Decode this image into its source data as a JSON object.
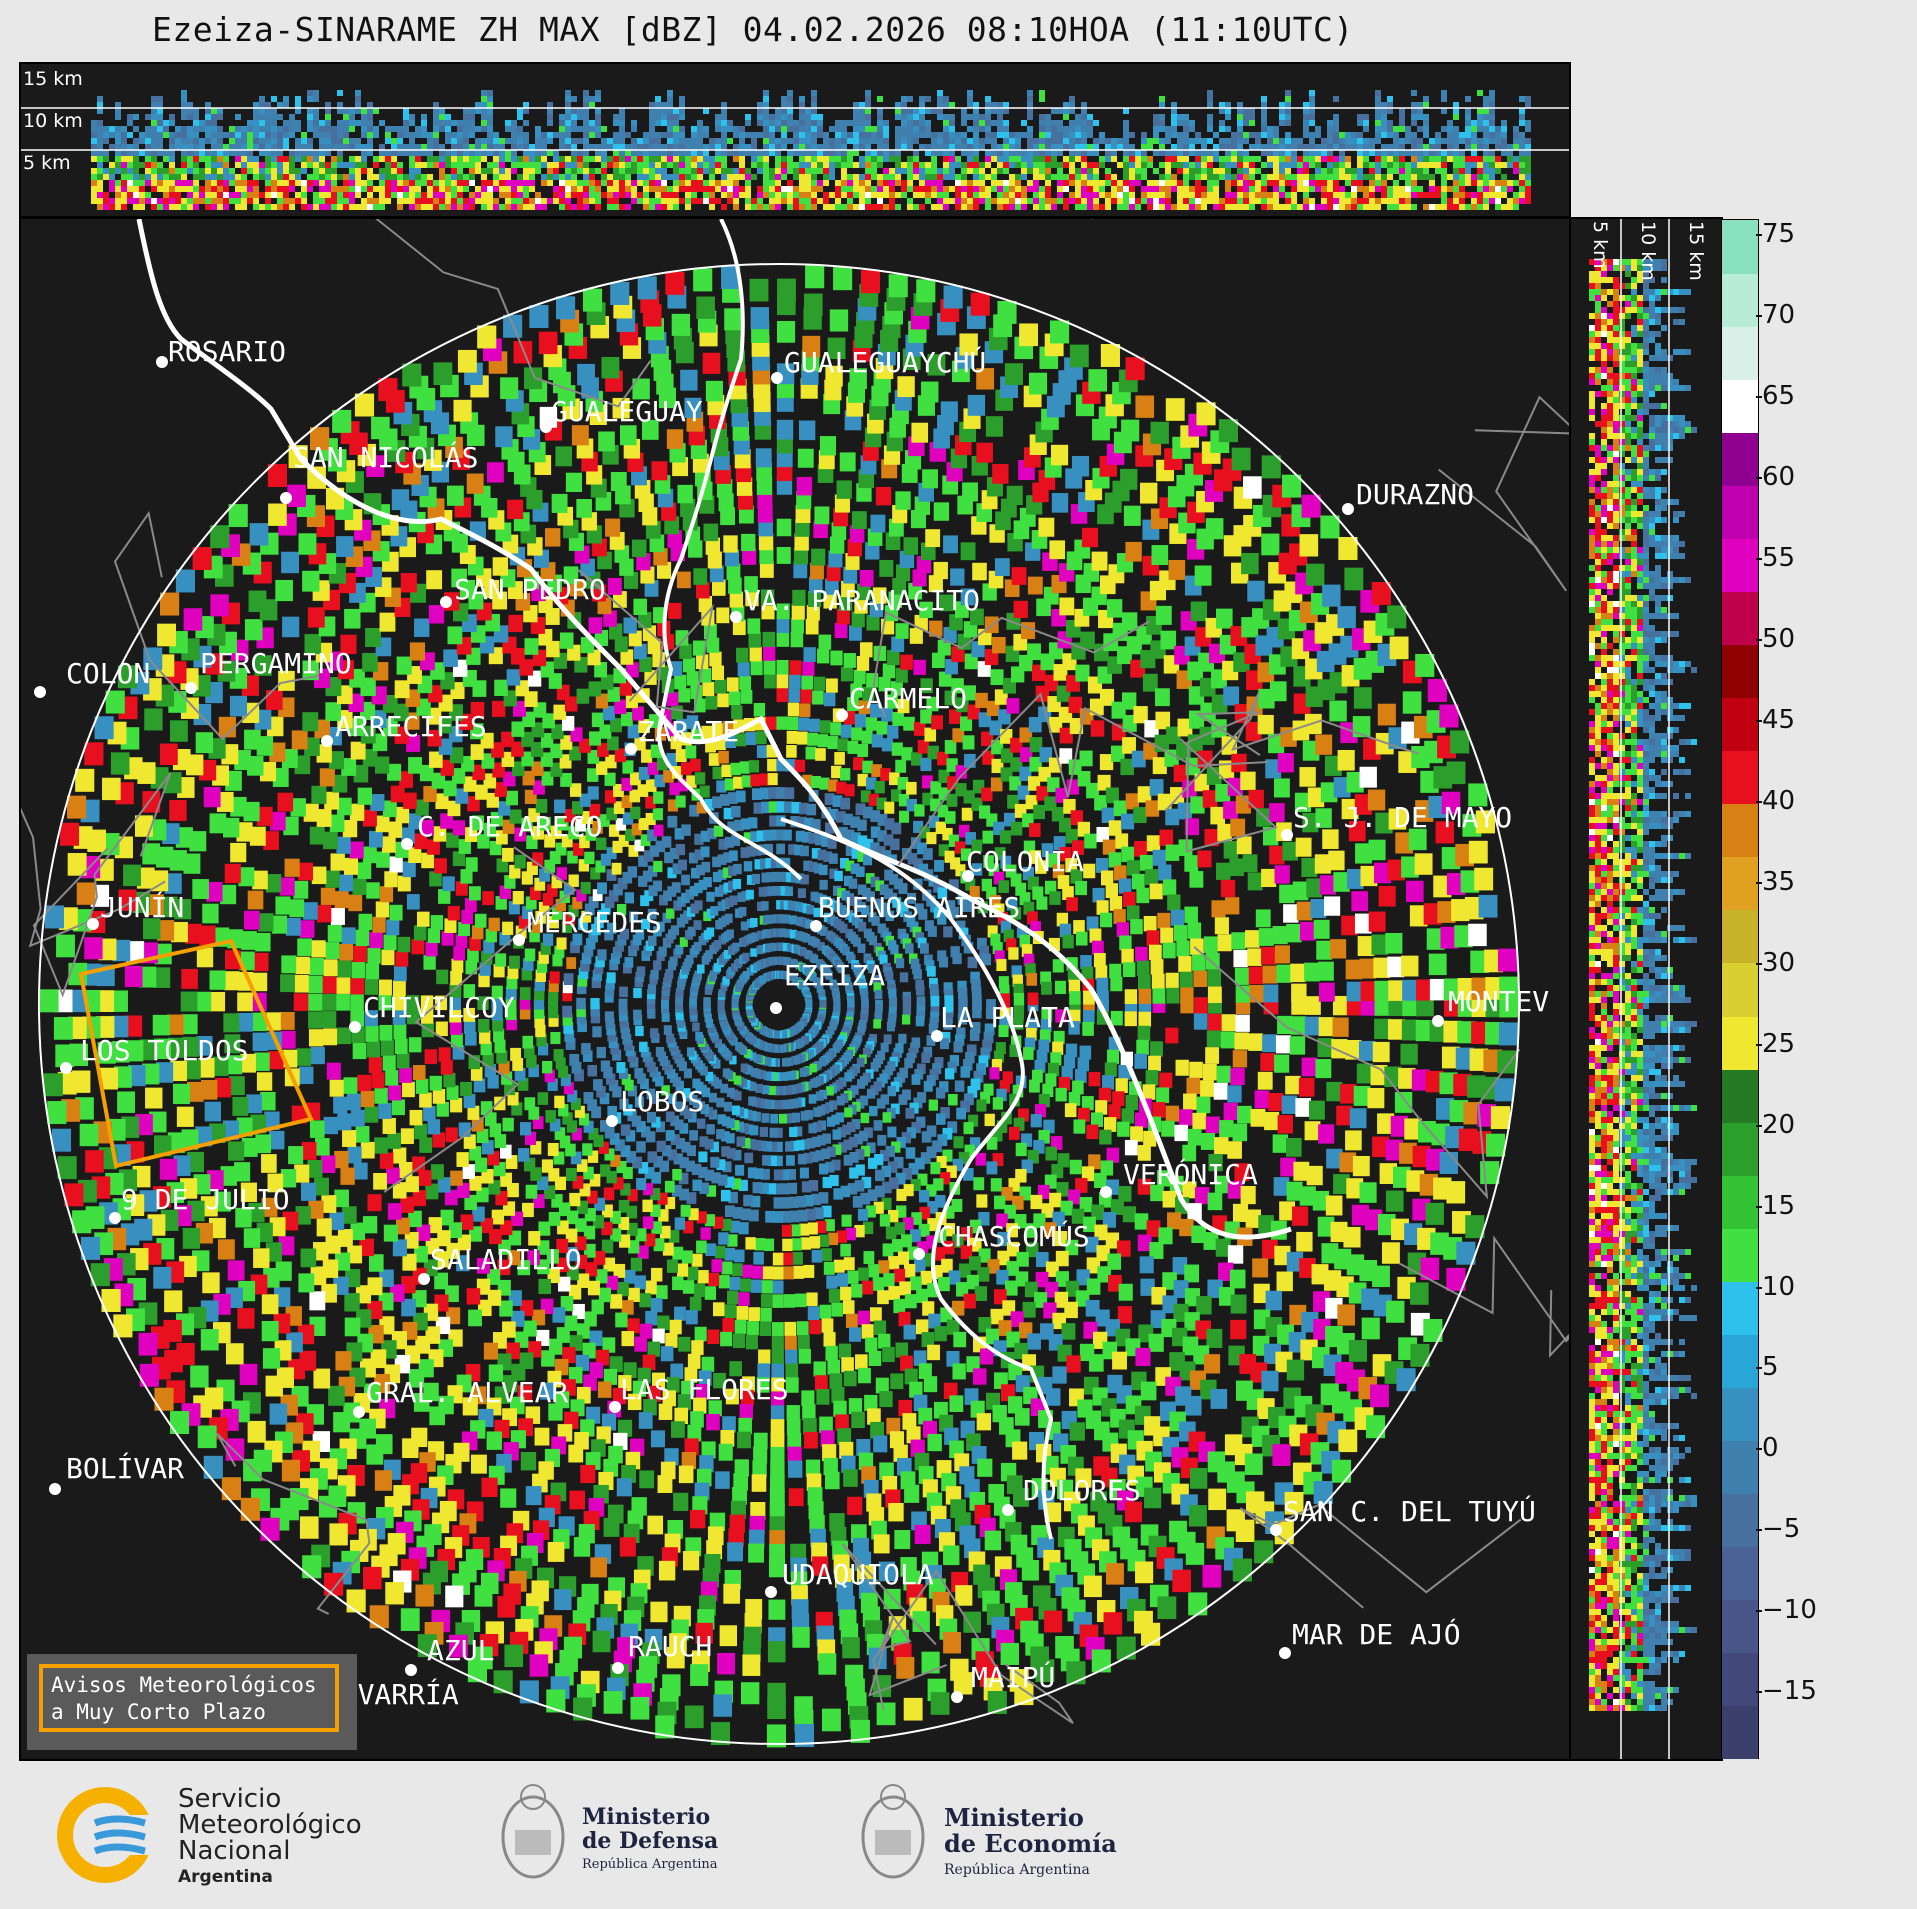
{
  "title": "Ezeiza-SINARAME ZH MAX [dBZ] 04.02.2026 08:10HOA (11:10UTC)",
  "top_panel": {
    "alt_labels": [
      "15 km",
      "10 km",
      "5 km"
    ]
  },
  "side_panel": {
    "alt_labels": [
      "5 km",
      "10 km",
      "15 km"
    ]
  },
  "cities": [
    {
      "name": "ROSARIO"
    },
    {
      "name": "GUALEGUAYCHÚ"
    },
    {
      "name": "GUALEGUAY"
    },
    {
      "name": "SAN NICOLÁS"
    },
    {
      "name": "DURAZNO"
    },
    {
      "name": "SAN PEDRO"
    },
    {
      "name": "VA. PARANACITO"
    },
    {
      "name": "COLON"
    },
    {
      "name": "PERGAMINO"
    },
    {
      "name": "CARMELO"
    },
    {
      "name": "ARRECIFES"
    },
    {
      "name": "ZÁRATE"
    },
    {
      "name": "C. DE ARECO"
    },
    {
      "name": "S. J. DE MAYO"
    },
    {
      "name": "COLONIA"
    },
    {
      "name": "JUNÍN"
    },
    {
      "name": "BUENOS AIRES"
    },
    {
      "name": "MERCEDES"
    },
    {
      "name": "EZEIZA"
    },
    {
      "name": "CHIVILCOY"
    },
    {
      "name": "MONTEV"
    },
    {
      "name": "LA PLATA"
    },
    {
      "name": "LOS TOLDOS"
    },
    {
      "name": "LOBOS"
    },
    {
      "name": "VERÓNICA"
    },
    {
      "name": "9 DE JULIO"
    },
    {
      "name": "CHASCOMÚS"
    },
    {
      "name": "SALADILLO"
    },
    {
      "name": "GRAL. ALVEAR"
    },
    {
      "name": "LAS FLORES"
    },
    {
      "name": "BOLÍVAR"
    },
    {
      "name": "DOLORES"
    },
    {
      "name": "SAN C. DEL TUYÚ"
    },
    {
      "name": "UDAQUIOLA"
    },
    {
      "name": "MAR DE AJÓ"
    },
    {
      "name": "AZUL"
    },
    {
      "name": "RAUCH"
    },
    {
      "name": "MAIPÚ"
    },
    {
      "name": "OLAVARRÍA"
    }
  ],
  "colorbar": {
    "unit": "dBZ",
    "ticks": [
      "75",
      "70",
      "65",
      "60",
      "55",
      "50",
      "45",
      "40",
      "35",
      "30",
      "25",
      "20",
      "15",
      "10",
      "5",
      "0",
      "−5",
      "−10",
      "−15"
    ],
    "colors": [
      "#3b3f6b",
      "#42497a",
      "#485588",
      "#4a6394",
      "#47709f",
      "#3f80ae",
      "#3890c0",
      "#2aa6d6",
      "#2dc1ec",
      "#3fe03f",
      "#33c233",
      "#2b9e2b",
      "#247a24",
      "#f0e830",
      "#d9cf30",
      "#c7b22a",
      "#e0a020",
      "#d98015",
      "#e8101e",
      "#c00010",
      "#900000",
      "#c0004a",
      "#e000c0",
      "#c000b0",
      "#900090",
      "#ffffff",
      "#d8f0e8",
      "#b8ecd8",
      "#88e0c0"
    ],
    "range": [
      -19,
      76
    ]
  },
  "range_ring_km": 240,
  "warning_box": {
    "line1": "Avisos Meteorológicos",
    "line2": "a Muy Corto Plazo",
    "border_color": "#f5a000"
  },
  "logos": {
    "smn": {
      "line1": "Servicio",
      "line2": "Meteorológico",
      "line3": "Nacional",
      "line4": "Argentina"
    },
    "defensa": {
      "line1": "Ministerio",
      "line2": "de Defensa",
      "line3": "República Argentina"
    },
    "economia": {
      "line1": "Ministerio",
      "line2": "de Economía",
      "line3": "República Argentina"
    }
  }
}
